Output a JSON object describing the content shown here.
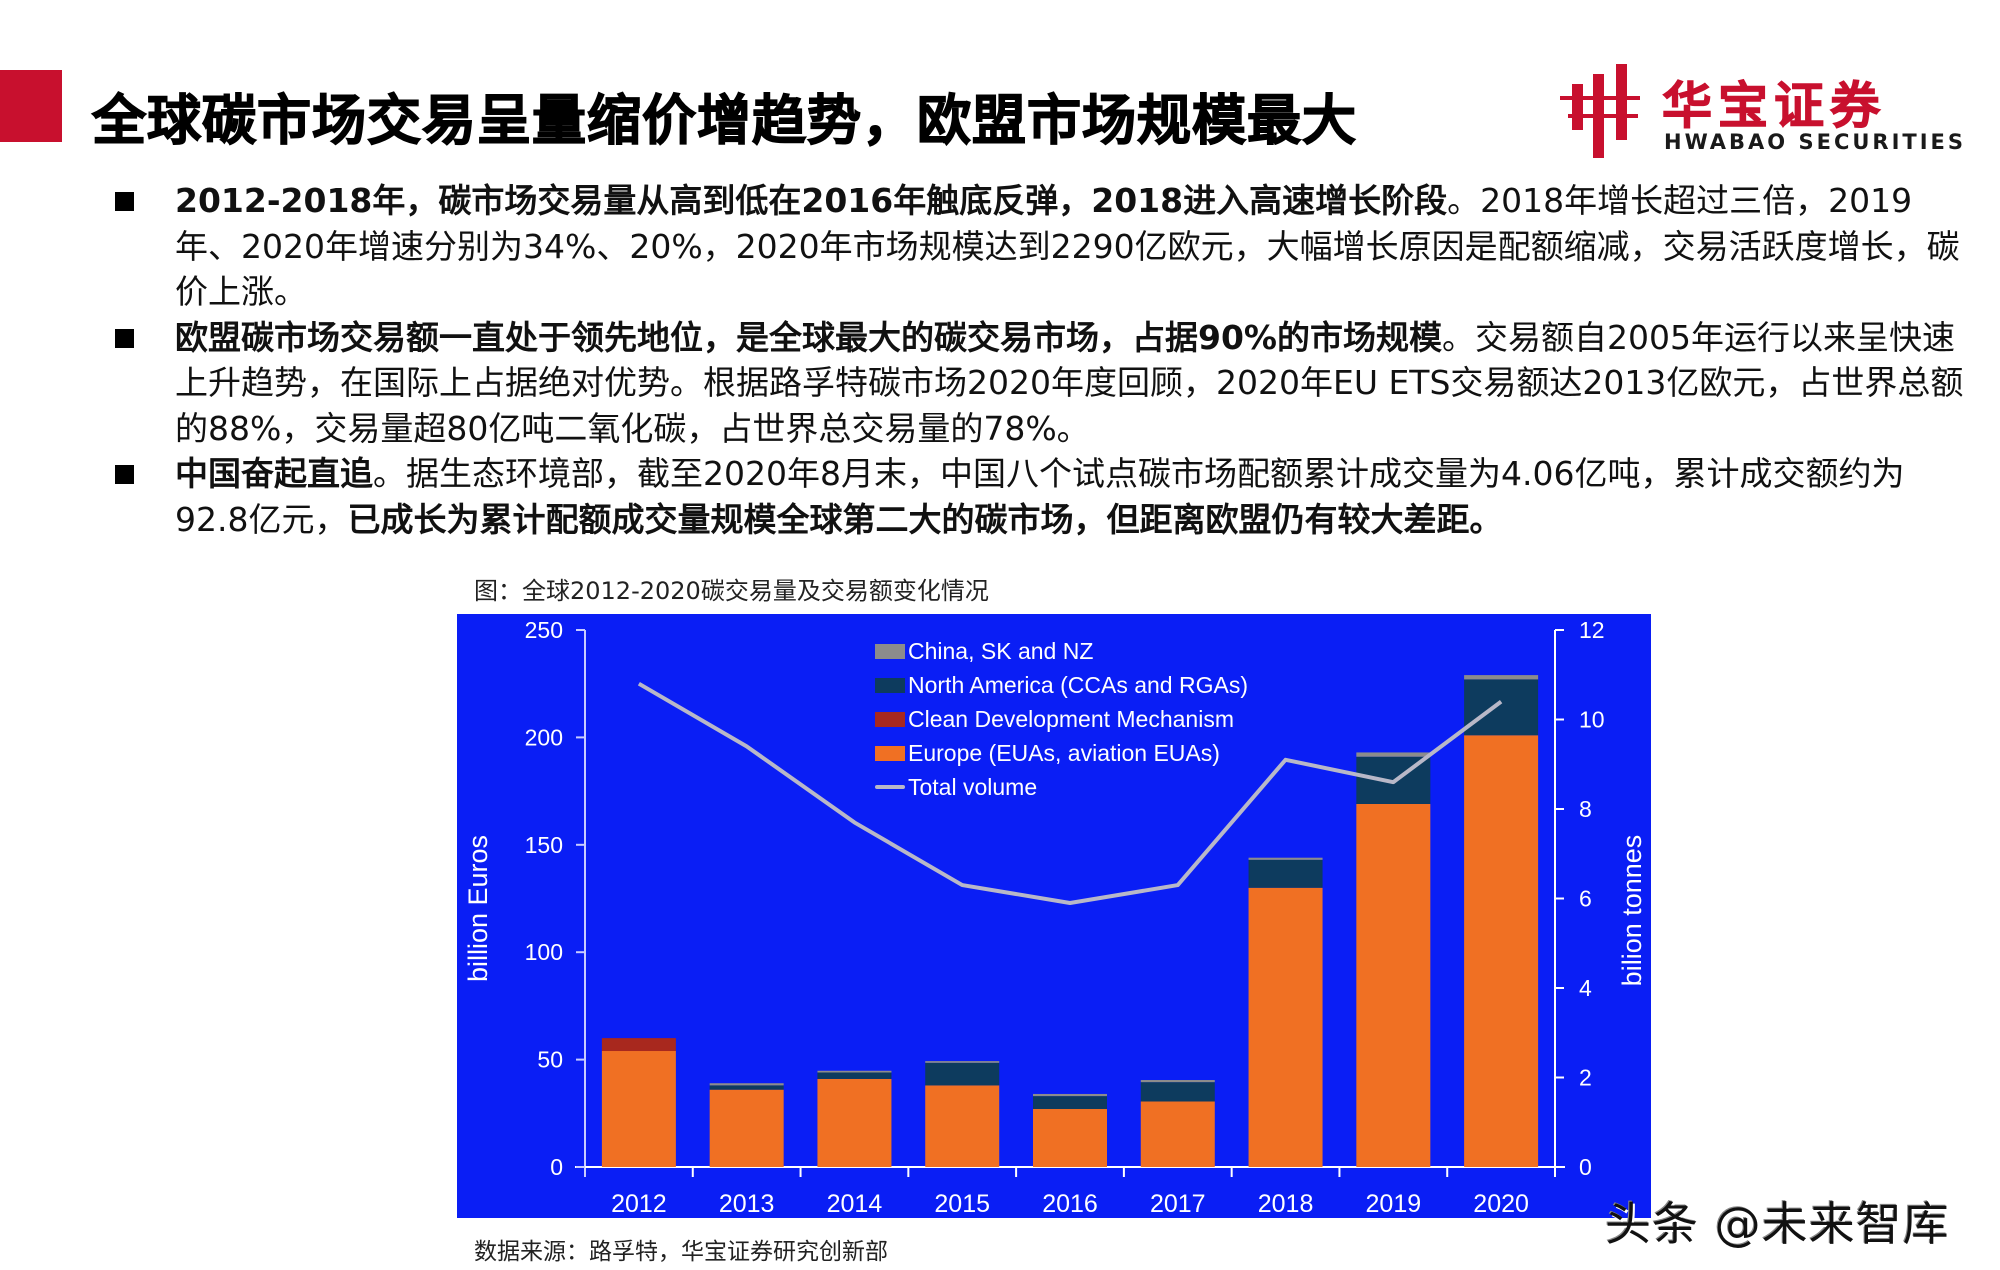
{
  "header": {
    "title": "全球碳市场交易呈量缩价增趋势，欧盟市场规模最大",
    "logo_cn": "华宝证券",
    "logo_en": "HWABAO SECURITIES",
    "accent_color": "#c8102e"
  },
  "bullets": [
    {
      "bold": "2012-2018年，碳市场交易量从高到低在2016年触底反弹，2018进入高速增长阶段",
      "normal": "。2018年增长超过三倍，2019年、2020年增速分别为34%、20%，2020年市场规模达到2290亿欧元，大幅增长原因是配额缩减，交易活跃度增长，碳价上涨。",
      "bold2": "",
      "normal2": ""
    },
    {
      "bold": "欧盟碳市场交易额一直处于领先地位，是全球最大的碳交易市场，占据90%的市场规模",
      "normal": "。交易额自2005年运行以来呈快速上升趋势，在国际上占据绝对优势。根据路孚特碳市场2020年度回顾，2020年EU ETS交易额达2013亿欧元，占世界总额的88%，交易量超80亿吨二氧化碳，占世界总交易量的78%。",
      "bold2": "",
      "normal2": ""
    },
    {
      "bold": "中国奋起直追",
      "normal": "。据生态环境部，截至2020年8月末，中国八个试点碳市场配额累计成交量为4.06亿吨，累计成交额约为92.8亿元，",
      "bold2": "已成长为累计配额成交量规模全球第二大的碳市场，但距离欧盟仍有较大差距。",
      "normal2": ""
    }
  ],
  "figure": {
    "caption": "图：全球2012-2020碳交易量及交易额变化情况",
    "source": "数据来源：路孚特，华宝证券研究创新部"
  },
  "watermark": "头条 @未来智库",
  "chart_data": {
    "type": "bar",
    "subtype": "stacked bar + line (dual axis)",
    "title": "全球2012-2020碳交易量及交易额变化情况",
    "categories": [
      "2012",
      "2013",
      "2014",
      "2015",
      "2016",
      "2017",
      "2018",
      "2019",
      "2020"
    ],
    "series": [
      {
        "name": "Europe (EUAs, aviation EUAs)",
        "type": "bar",
        "axis": "left",
        "color": "#f07023",
        "values": [
          54,
          36,
          41,
          38,
          27,
          30.5,
          130,
          169,
          201
        ]
      },
      {
        "name": "Clean Development Mechanism",
        "type": "bar",
        "axis": "left",
        "color": "#a8281e",
        "values": [
          6,
          0,
          0,
          0,
          0,
          0,
          0,
          0,
          0
        ]
      },
      {
        "name": "North America (CCAs and RGAs)",
        "type": "bar",
        "axis": "left",
        "color": "#0d3b5e",
        "values": [
          0,
          2,
          3,
          10.5,
          6,
          9,
          13,
          22,
          26
        ]
      },
      {
        "name": "China, SK and NZ",
        "type": "bar",
        "axis": "left",
        "color": "#8c8c8c",
        "values": [
          0,
          1,
          0.8,
          0.8,
          1,
          1,
          1,
          2,
          2
        ]
      },
      {
        "name": "Total volume",
        "type": "line",
        "axis": "right",
        "color": "#b8b8c8",
        "values": [
          10.8,
          9.4,
          7.7,
          6.3,
          5.9,
          6.3,
          9.1,
          8.6,
          10.4
        ]
      }
    ],
    "legend_order": [
      "China, SK and NZ",
      "North America (CCAs and RGAs)",
      "Clean Development Mechanism",
      "Europe (EUAs, aviation EUAs)",
      "Total volume"
    ],
    "xlabel": "",
    "ylabel": "billion Euros",
    "ylabel_right": "bilion tonnes",
    "ylim": [
      0,
      250
    ],
    "ylim_right": [
      0,
      12
    ],
    "yticks": [
      0,
      50,
      100,
      150,
      200,
      250
    ],
    "yticks_right": [
      0,
      2,
      4,
      6,
      8,
      10,
      12
    ],
    "grid": false,
    "legend_position": "top-center inside plot",
    "background": "#0a1ef5"
  }
}
